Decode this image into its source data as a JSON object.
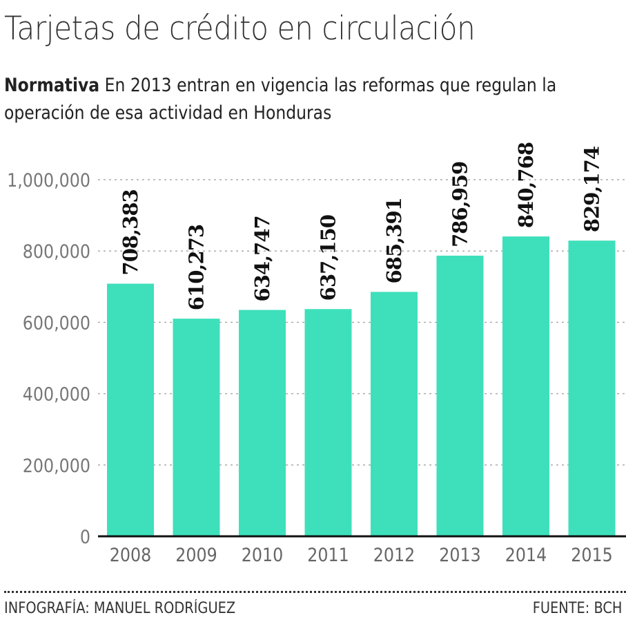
{
  "title": "Tarjetas de crédito en circulación",
  "subtitle": {
    "lead": "Normativa",
    "text": "En 2013 entran en vigencia las reformas que regulan la operación de esa actividad en Honduras"
  },
  "chart_data": {
    "type": "bar",
    "title": "Tarjetas de crédito en circulación",
    "categories": [
      "2008",
      "2009",
      "2010",
      "2011",
      "2012",
      "2013",
      "2014",
      "2015"
    ],
    "values": [
      708383,
      610273,
      634747,
      637150,
      685391,
      786959,
      840768,
      829174
    ],
    "data_labels": [
      "708,383",
      "610,273",
      "634,747",
      "637,150",
      "685,391",
      "786,959",
      "840,768",
      "829,174"
    ],
    "ylim": [
      0,
      1000000
    ],
    "yticks": [
      0,
      200000,
      400000,
      600000,
      800000,
      1000000
    ],
    "ytick_labels": [
      "0",
      "200,000",
      "400,000",
      "600,000",
      "800,000",
      "1,000,000"
    ],
    "grid": "horizontal dashed",
    "colors": {
      "bar": "#3ee0bb",
      "grid": "#aaaaaa",
      "axis": "#111111",
      "label": "#111111"
    }
  },
  "footer": {
    "credit": "INFOGRAFÍA: MANUEL RODRÍGUEZ",
    "source": "FUENTE: BCH"
  }
}
